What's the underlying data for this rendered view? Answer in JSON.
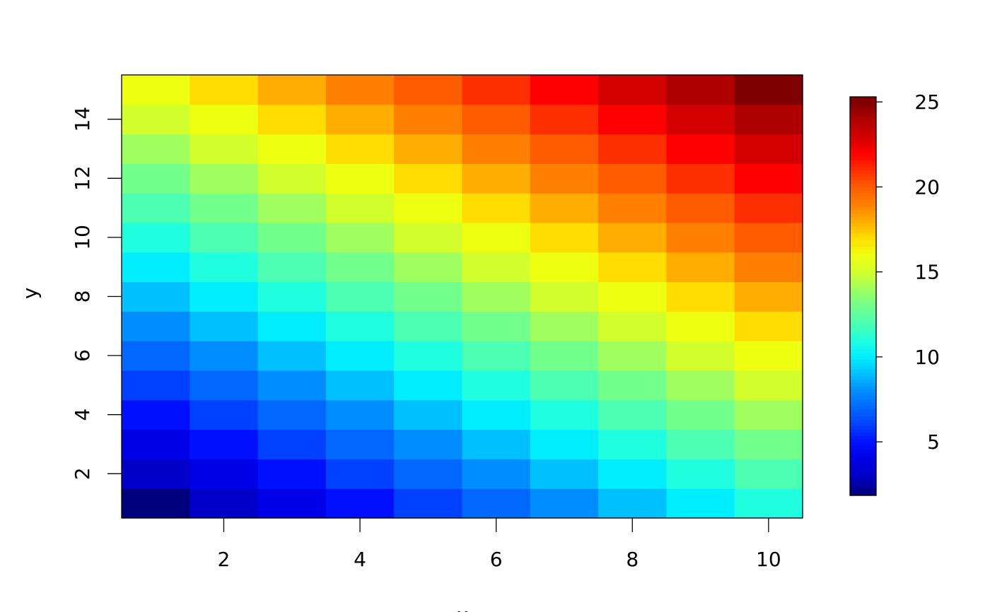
{
  "chart_data": {
    "type": "heatmap",
    "title": "",
    "xlabel": "x",
    "ylabel": "y",
    "x": [
      1,
      2,
      3,
      4,
      5,
      6,
      7,
      8,
      9,
      10
    ],
    "y": [
      1,
      2,
      3,
      4,
      5,
      6,
      7,
      8,
      9,
      10,
      11,
      12,
      13,
      14,
      15
    ],
    "z": [
      [
        2,
        3,
        4,
        5,
        6,
        7,
        8,
        9,
        10,
        11
      ],
      [
        3,
        4,
        5,
        6,
        7,
        8,
        9,
        10,
        11,
        12
      ],
      [
        4,
        5,
        6,
        7,
        8,
        9,
        10,
        11,
        12,
        13
      ],
      [
        5,
        6,
        7,
        8,
        9,
        10,
        11,
        12,
        13,
        14
      ],
      [
        6,
        7,
        8,
        9,
        10,
        11,
        12,
        13,
        14,
        15
      ],
      [
        7,
        8,
        9,
        10,
        11,
        12,
        13,
        14,
        15,
        16
      ],
      [
        8,
        9,
        10,
        11,
        12,
        13,
        14,
        15,
        16,
        17
      ],
      [
        9,
        10,
        11,
        12,
        13,
        14,
        15,
        16,
        17,
        18
      ],
      [
        10,
        11,
        12,
        13,
        14,
        15,
        16,
        17,
        18,
        19
      ],
      [
        11,
        12,
        13,
        14,
        15,
        16,
        17,
        18,
        19,
        20
      ],
      [
        12,
        13,
        14,
        15,
        16,
        17,
        18,
        19,
        20,
        21
      ],
      [
        13,
        14,
        15,
        16,
        17,
        18,
        19,
        20,
        21,
        22
      ],
      [
        14,
        15,
        16,
        17,
        18,
        19,
        20,
        21,
        22,
        23
      ],
      [
        15,
        16,
        17,
        18,
        19,
        20,
        21,
        22,
        23,
        24
      ],
      [
        16,
        17,
        18,
        19,
        20,
        21,
        22,
        23,
        24,
        25
      ]
    ],
    "xlim": [
      0.5,
      10.5
    ],
    "ylim": [
      0.5,
      15.5
    ],
    "xticks": [
      "2",
      "4",
      "6",
      "8",
      "10"
    ],
    "yticks": [
      "2",
      "4",
      "6",
      "8",
      "10",
      "12",
      "14"
    ],
    "colorbar": {
      "range": [
        2,
        25
      ],
      "ticks": [
        "5",
        "10",
        "15",
        "20",
        "25"
      ]
    },
    "palette": {
      "2": "#00007F",
      "3": "#0000C8",
      "4": "#0000E6",
      "5": "#0010FF",
      "6": "#0040FF",
      "7": "#0068FF",
      "8": "#008DFF",
      "9": "#00C0FF",
      "10": "#00EEFF",
      "11": "#1FFFE0",
      "12": "#4CFFB2",
      "13": "#72FF8C",
      "14": "#A0FF5E",
      "15": "#D2FF2C",
      "16": "#EEFF10",
      "17": "#FFDD00",
      "18": "#FFAD00",
      "19": "#FF7F00",
      "20": "#FF5C00",
      "21": "#FF2E00",
      "22": "#FF0000",
      "23": "#D20000",
      "24": "#AF0000",
      "25": "#7F0000"
    },
    "grid": false,
    "legend": "right"
  }
}
